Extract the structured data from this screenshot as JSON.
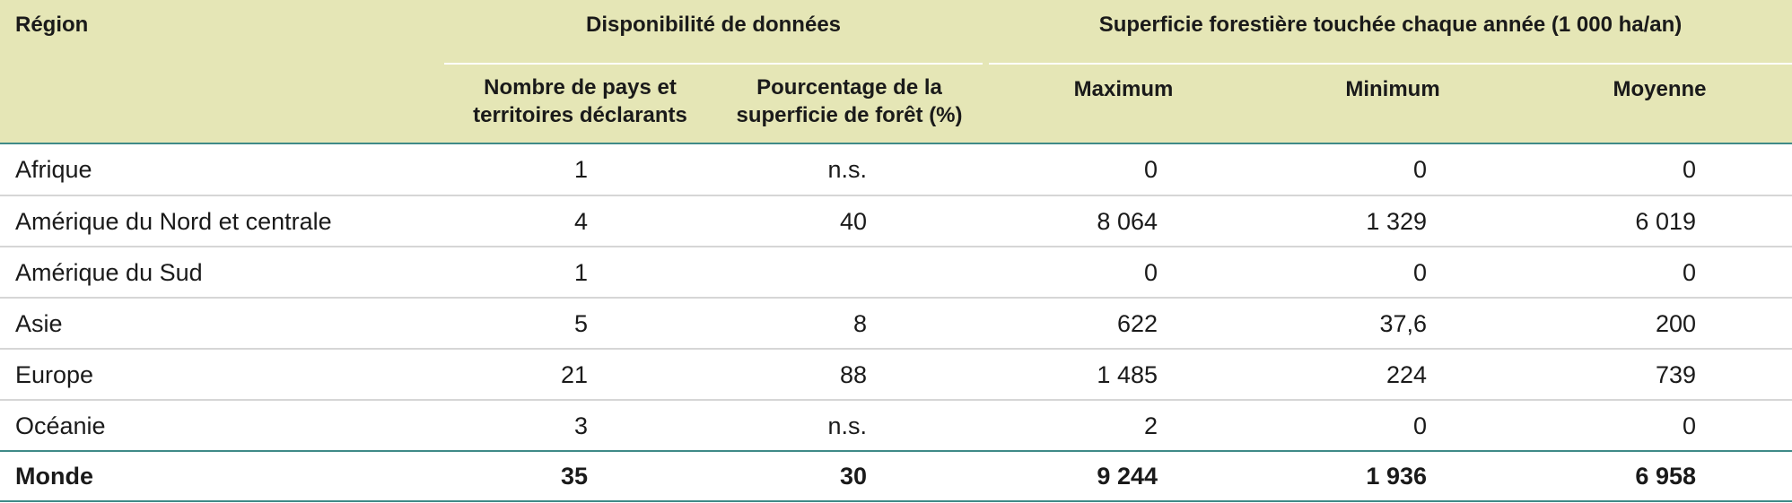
{
  "table": {
    "header": {
      "region": "Région",
      "group_availability": "Disponibilité de données",
      "group_area": "Superficie forestière touchée chaque année (1 000 ha/an)",
      "col_countries_line1": "Nombre de pays et",
      "col_countries_line2": "territoires déclarants",
      "col_percent_line1": "Pourcentage de la",
      "col_percent_line2": "superficie de forêt (%)",
      "col_max": "Maximum",
      "col_min": "Minimum",
      "col_mean": "Moyenne"
    },
    "rows": [
      {
        "region": "Afrique",
        "countries": "1",
        "percent": "n.s.",
        "max": "0",
        "min": "0",
        "mean": "0"
      },
      {
        "region": "Amérique du Nord et centrale",
        "countries": "4",
        "percent": "40",
        "max": "8 064",
        "min": "1 329",
        "mean": "6 019"
      },
      {
        "region": "Amérique du Sud",
        "countries": "1",
        "percent": "",
        "max": "0",
        "min": "0",
        "mean": "0"
      },
      {
        "region": "Asie",
        "countries": "5",
        "percent": "8",
        "max": "622",
        "min": "37,6",
        "mean": "200"
      },
      {
        "region": "Europe",
        "countries": "21",
        "percent": "88",
        "max": "1 485",
        "min": "224",
        "mean": "739"
      },
      {
        "region": "Océanie",
        "countries": "3",
        "percent": "n.s.",
        "max": "2",
        "min": "0",
        "mean": "0"
      }
    ],
    "total": {
      "region": "Monde",
      "countries": "35",
      "percent": "30",
      "max": "9 244",
      "min": "1 936",
      "mean": "6 958"
    }
  },
  "colors": {
    "header_bg": "#e5e6b6",
    "rule_teal": "#3f8a88",
    "rule_grey": "#d6d6d6"
  }
}
